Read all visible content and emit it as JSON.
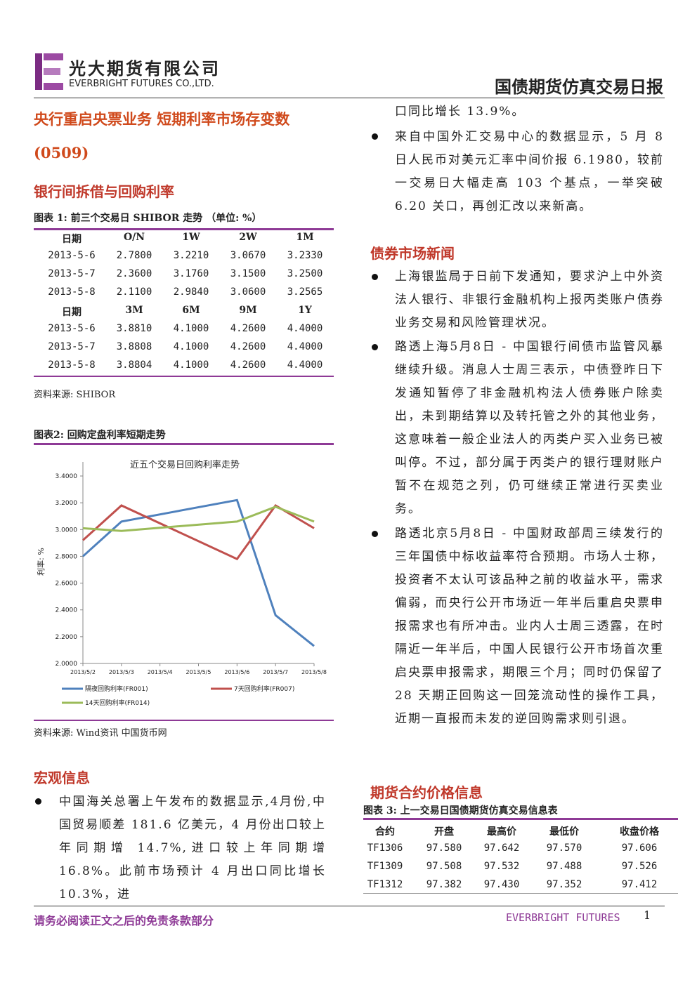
{
  "header": {
    "company_cn": "光大期货有限公司",
    "company_en": "EVERBRIGHT FUTURES CO.,LTD.",
    "report_title": "国债期货仿真交易日报"
  },
  "headline": "央行重启央票业务 短期利率市场存变数",
  "date": "(0509)",
  "interbank": {
    "title": "银行间拆借与回购利率",
    "table": {
      "caption": "图表 1: 前三个交易日 SHIBOR 走势 （单位: %）",
      "blocks": [
        {
          "header": [
            "日期",
            "O/N",
            "1W",
            "2W",
            "1M"
          ],
          "rows": [
            [
              "2013-5-6",
              "2.7800",
              "3.2210",
              "3.0670",
              "3.2330"
            ],
            [
              "2013-5-7",
              "2.3600",
              "3.1760",
              "3.1500",
              "3.2500"
            ],
            [
              "2013-5-8",
              "2.1100",
              "2.9840",
              "3.0600",
              "3.2565"
            ]
          ]
        },
        {
          "header": [
            "日期",
            "3M",
            "6M",
            "9M",
            "1Y"
          ],
          "rows": [
            [
              "2013-5-6",
              "3.8810",
              "4.1000",
              "4.2600",
              "4.4000"
            ],
            [
              "2013-5-7",
              "3.8808",
              "4.1000",
              "4.2600",
              "4.4000"
            ],
            [
              "2013-5-8",
              "3.8804",
              "4.1000",
              "4.2600",
              "4.4000"
            ]
          ]
        }
      ]
    },
    "source": "资料来源: SHIBOR"
  },
  "chart_caption": "图表2: 回购定盘利率短期走势",
  "chart_data": {
    "type": "line",
    "title": "近五个交易日回购利率走势",
    "ylabel": "利率: %",
    "x": [
      "2013/5/2",
      "2013/5/3",
      "2013/5/6",
      "2013/5/7",
      "2013/5/8"
    ],
    "xticks": [
      "2013/5/2",
      "2013/5/3",
      "2013/5/4",
      "2013/5/5",
      "2013/5/6",
      "2013/5/7",
      "2013/5/8"
    ],
    "xlim": [
      "2013/5/2",
      "2013/5/8"
    ],
    "ylim": [
      2.0,
      3.4
    ],
    "yticks": [
      {
        "value": 2.0,
        "label": "2.0000"
      },
      {
        "value": 2.2,
        "label": "2.2000"
      },
      {
        "value": 2.4,
        "label": "2.4000"
      },
      {
        "value": 2.6,
        "label": "2.6000"
      },
      {
        "value": 2.8,
        "label": "2.8000"
      },
      {
        "value": 3.0,
        "label": "3.0000"
      },
      {
        "value": 3.2,
        "label": "3.2000"
      },
      {
        "value": 3.4,
        "label": "3.4000"
      }
    ],
    "grid": false,
    "series": [
      {
        "name": "隔夜回购利率(FR001)",
        "color": "#4f81bd",
        "values": [
          2.8,
          3.06,
          3.22,
          2.36,
          2.13
        ]
      },
      {
        "name": "7天回购利率(FR007)",
        "color": "#c0504d",
        "values": [
          2.92,
          3.18,
          2.78,
          3.18,
          3.01
        ]
      },
      {
        "name": "14天回购利率(FR014)",
        "color": "#9bbb59",
        "values": [
          3.01,
          2.99,
          3.06,
          3.17,
          3.06
        ]
      }
    ]
  },
  "chart_source": "资料来源: Wind资讯 中国货币网",
  "macro": {
    "title": "宏观信息",
    "bullets": [
      {
        "parts": [
          "中国海关总署上午发布的数据显示,4月份,中国贸易顺差 181.6 亿美元，4 月份出口较上年同期增 14.7%,进口较上年同期增 16.8%。此前市场预计 4 月出口同比增长 10.3%，进",
          "口同比增长 13.9%。"
        ]
      },
      {
        "parts": [
          "来自中国外汇交易中心的数据显示，5 月 8 日人民币对美元汇率中间价报 6.1980，较前一交易日大幅走高 103 个基点，一举突破 6.20 关口，再创汇改以来新高。"
        ]
      }
    ]
  },
  "bond_news": {
    "title": "债券市场新闻",
    "bullets": [
      "上海银监局于日前下发通知，要求沪上中外资法人银行、非银行金融机构上报丙类账户债券业务交易和风险管理状况。",
      "路透上海5月8日 - 中国银行间债市监管风暴继续升级。消息人士周三表示，中债登昨日下发通知暂停了非金融机构法人债券账户除卖出，未到期结算以及转托管之外的其他业务，这意味着一般企业法人的丙类户买入业务已被叫停。不过，部分属于丙类户的银行理财账户暂不在规范之列，仍可继续正常进行买卖业务。",
      "路透北京5月8日 - 中国财政部周三续发行的三年国债中标收益率符合预期。市场人士称，投资者不太认可该品种之前的收益水平，需求偏弱，而央行公开市场近一年半后重启央票申报需求也有所冲击。业内人士周三透露，在时隔近一年半后，中国人民银行公开市场首次重启央票申报需求，期限三个月；同时仍保留了 28 天期正回购这一回笼流动性的操作工具，近期一直报而未发的逆回购需求则引退。"
    ]
  },
  "futures": {
    "title": "期货合约价格信息",
    "caption": "图表 3: 上一交易日国债期货仿真交易信息表",
    "header": [
      "合约",
      "开盘",
      "最高价",
      "最低价",
      "收盘价格"
    ],
    "rows": [
      [
        "TF1306",
        "97.580",
        "97.642",
        "97.570",
        "97.606"
      ],
      [
        "TF1309",
        "97.508",
        "97.532",
        "97.488",
        "97.526"
      ],
      [
        "TF1312",
        "97.382",
        "97.430",
        "97.352",
        "97.412"
      ]
    ]
  },
  "footer": {
    "disclaimer": "请务必阅读正文之后的免责条款部分",
    "brand": "EVERBRIGHT FUTURES",
    "page": "1"
  }
}
